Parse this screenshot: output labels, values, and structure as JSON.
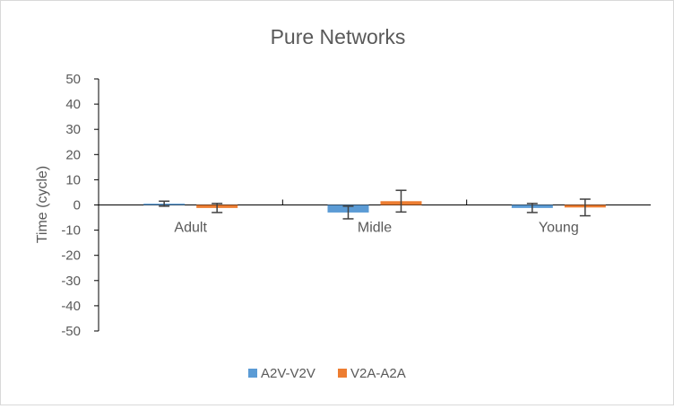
{
  "chart_data": {
    "type": "bar",
    "title": "Pure Networks",
    "xlabel": "",
    "ylabel": "Time (cycle)",
    "ylim": [
      -50,
      50
    ],
    "ytick_step": 10,
    "yticks": [
      "50",
      "40",
      "30",
      "20",
      "10",
      "0",
      "-10",
      "-20",
      "-30",
      "-40",
      "-50"
    ],
    "categories": [
      "Adult",
      "Midle",
      "Young"
    ],
    "series": [
      {
        "name": "A2V-V2V",
        "color": "#5B9BD5",
        "values": [
          0.5,
          -3,
          -1.2
        ],
        "errors": [
          1.0,
          2.5,
          1.8
        ]
      },
      {
        "name": "V2A-A2A",
        "color": "#ED7D31",
        "values": [
          -1.2,
          1.5,
          -1.0
        ],
        "errors": [
          1.8,
          4.3,
          3.3
        ]
      }
    ],
    "grid": false,
    "legend_position": "bottom",
    "axis_color": "#000000",
    "errorbar_color": "#404040"
  }
}
